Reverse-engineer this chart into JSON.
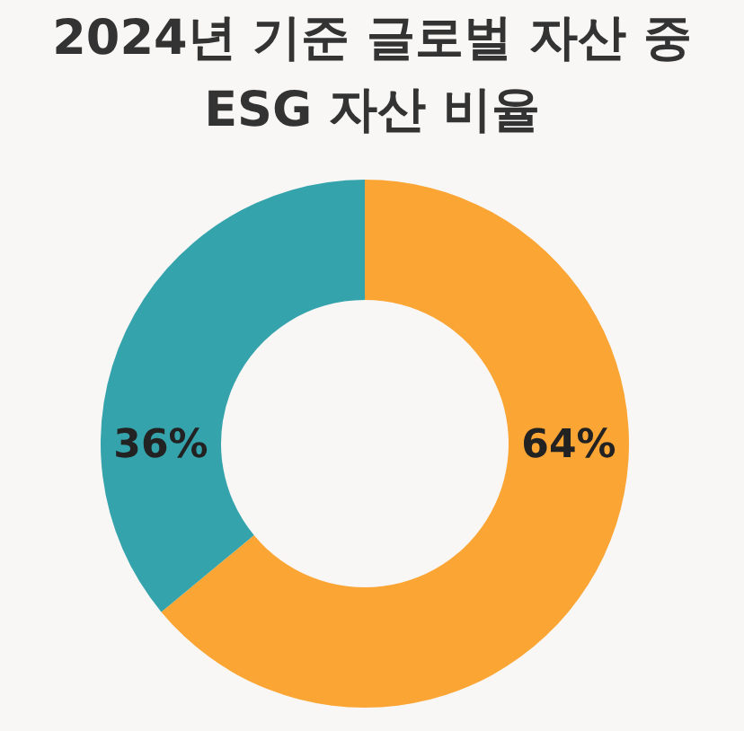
{
  "chart_data": {
    "type": "donut",
    "title": "2024년 기준 글로벌 자산 중\nESG 자산 비율",
    "categories": [
      null,
      null
    ],
    "values": [
      64,
      36
    ],
    "colors": [
      "#fba535",
      "#35a3ac"
    ],
    "value_labels": [
      "64%",
      "36%"
    ]
  }
}
